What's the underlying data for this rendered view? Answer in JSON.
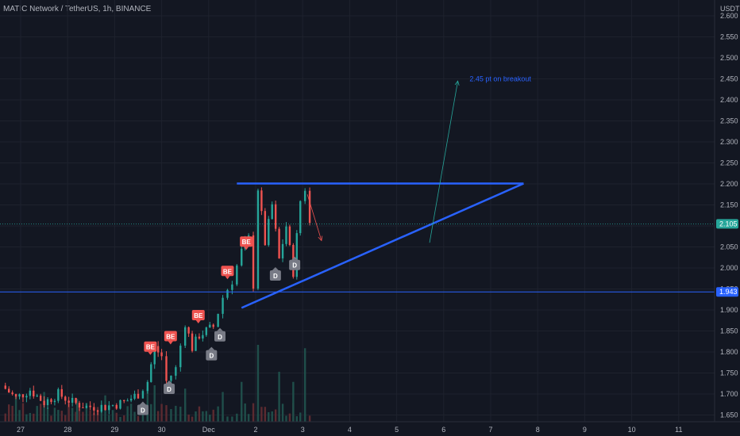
{
  "header": {
    "symbol_title": "MATIC Network / TetherUS, 1h, BINANCE"
  },
  "chart_data": {
    "type": "candlestick",
    "symbol": "MATIC Network / TetherUS",
    "interval": "1h",
    "exchange": "BINANCE",
    "currency_label": "USDT",
    "y_ticks": [
      "2.600",
      "2.550",
      "2.500",
      "2.450",
      "2.400",
      "2.350",
      "2.300",
      "2.250",
      "2.200",
      "2.150",
      "2.100",
      "2.050",
      "2.000",
      "1.950",
      "1.900",
      "1.850",
      "1.800",
      "1.750",
      "1.700",
      "1.650"
    ],
    "x_ticks": [
      "27",
      "28",
      "29",
      "30",
      "Dec",
      "2",
      "3",
      "4",
      "5",
      "6",
      "7",
      "8",
      "9",
      "10",
      "11"
    ],
    "ylim": [
      1.64,
      2.62
    ],
    "last_price": {
      "label": "2.105",
      "value": 2.105,
      "color": "#26a69a"
    },
    "level_price": {
      "label": "1.943",
      "value": 1.943,
      "color": "#2962ff"
    },
    "price_path": [
      {
        "day": 26.6,
        "price": 1.72
      },
      {
        "day": 26.9,
        "price": 1.69
      },
      {
        "day": 27.2,
        "price": 1.71
      },
      {
        "day": 27.5,
        "price": 1.68
      },
      {
        "day": 27.8,
        "price": 1.7
      },
      {
        "day": 28.1,
        "price": 1.68
      },
      {
        "day": 28.4,
        "price": 1.67
      },
      {
        "day": 28.8,
        "price": 1.67
      },
      {
        "day": 29.2,
        "price": 1.68
      },
      {
        "day": 29.5,
        "price": 1.7
      },
      {
        "day": 29.7,
        "price": 1.73
      },
      {
        "day": 29.85,
        "price": 1.81
      },
      {
        "day": 30.0,
        "price": 1.79
      },
      {
        "day": 30.1,
        "price": 1.73
      },
      {
        "day": 30.3,
        "price": 1.76
      },
      {
        "day": 30.5,
        "price": 1.87
      },
      {
        "day": 30.65,
        "price": 1.81
      },
      {
        "day": 30.8,
        "price": 1.84
      },
      {
        "day": 31.1,
        "price": 1.86
      },
      {
        "day": 31.3,
        "price": 1.93
      },
      {
        "day": 31.5,
        "price": 1.97
      },
      {
        "day": 31.7,
        "price": 2.04
      },
      {
        "day": 31.85,
        "price": 2.07
      },
      {
        "day": 31.95,
        "price": 1.96
      },
      {
        "day": 32.05,
        "price": 2.19
      },
      {
        "day": 32.2,
        "price": 2.06
      },
      {
        "day": 32.35,
        "price": 2.15
      },
      {
        "day": 32.5,
        "price": 2.02
      },
      {
        "day": 32.65,
        "price": 2.1
      },
      {
        "day": 32.8,
        "price": 1.99
      },
      {
        "day": 32.95,
        "price": 2.16
      },
      {
        "day": 33.05,
        "price": 2.19
      },
      {
        "day": 33.15,
        "price": 2.105
      }
    ],
    "volume_bars": [
      {
        "day": 26.9,
        "height": 0.25
      },
      {
        "day": 27.5,
        "height": 0.3
      },
      {
        "day": 28.2,
        "height": 0.2
      },
      {
        "day": 28.8,
        "height": 0.25
      },
      {
        "day": 29.7,
        "height": 0.35
      },
      {
        "day": 29.85,
        "height": 0.4
      },
      {
        "day": 30.5,
        "height": 0.35
      },
      {
        "day": 31.3,
        "height": 0.3
      },
      {
        "day": 31.7,
        "height": 0.45
      },
      {
        "day": 32.05,
        "height": 1.0
      },
      {
        "day": 32.5,
        "height": 0.6
      },
      {
        "day": 32.8,
        "height": 0.45
      },
      {
        "day": 33.05,
        "height": 0.95
      }
    ],
    "drawings": {
      "resistance_line": {
        "x1_day": 31.6,
        "x2_day": 37.7,
        "price": 2.201,
        "color": "#2962ff"
      },
      "support_trendline": {
        "x1_day": 31.7,
        "y1": 1.905,
        "x2_day": 37.7,
        "y2": 2.201,
        "color": "#2962ff"
      },
      "horizontal_level": {
        "price": 1.943,
        "color": "#2962ff"
      },
      "target_arrow": {
        "x1_day": 35.7,
        "y1": 2.06,
        "x2_day": 36.3,
        "y2": 2.445,
        "color": "#26a69a"
      },
      "down_arrow": {
        "x1_day": 33.1,
        "y1": 2.175,
        "x2_day": 33.4,
        "y2": 2.065,
        "color": "#ef5350"
      },
      "annotation": {
        "text": "2.45 pt on breakout",
        "x_day": 36.55,
        "price": 2.45,
        "color": "#2962ff"
      }
    },
    "signals": [
      {
        "label": "BE",
        "type": "sell",
        "day": 29.76,
        "price": 1.81
      },
      {
        "label": "BE",
        "type": "sell",
        "day": 30.19,
        "price": 1.835
      },
      {
        "label": "BE",
        "type": "sell",
        "day": 30.78,
        "price": 1.885
      },
      {
        "label": "BE",
        "type": "sell",
        "day": 31.4,
        "price": 1.99
      },
      {
        "label": "BE",
        "type": "sell",
        "day": 31.8,
        "price": 2.06
      },
      {
        "label": "D",
        "type": "buy",
        "day": 29.6,
        "price": 1.665
      },
      {
        "label": "D",
        "type": "buy",
        "day": 30.16,
        "price": 1.715
      },
      {
        "label": "D",
        "type": "buy",
        "day": 31.06,
        "price": 1.795
      },
      {
        "label": "D",
        "type": "buy",
        "day": 31.24,
        "price": 1.84
      },
      {
        "label": "D",
        "type": "buy",
        "day": 32.42,
        "price": 1.985
      },
      {
        "label": "D",
        "type": "buy",
        "day": 32.83,
        "price": 2.01
      }
    ],
    "colors": {
      "up": "#26a69a",
      "down": "#ef5350",
      "sell_signal": "#ef5350",
      "buy_signal": "#787b86",
      "line": "#2962ff"
    },
    "grid": true
  }
}
